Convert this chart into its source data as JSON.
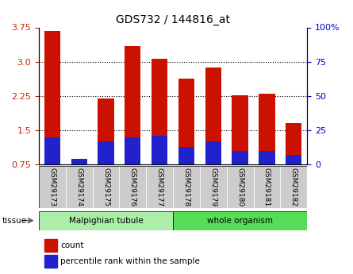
{
  "title": "GDS732 / 144816_at",
  "samples": [
    "GSM29173",
    "GSM29174",
    "GSM29175",
    "GSM29176",
    "GSM29177",
    "GSM29178",
    "GSM29179",
    "GSM29180",
    "GSM29181",
    "GSM29182"
  ],
  "count_values": [
    3.68,
    0.85,
    2.2,
    3.35,
    3.07,
    2.62,
    2.87,
    2.27,
    2.3,
    1.65
  ],
  "percentile_pct": [
    20,
    4,
    17,
    20,
    21,
    13,
    17,
    10,
    10,
    7
  ],
  "tissue_groups": [
    {
      "label": "Malpighian tubule",
      "start": 0,
      "end": 5,
      "color": "#aaeeaa"
    },
    {
      "label": "whole organism",
      "start": 5,
      "end": 10,
      "color": "#55dd55"
    }
  ],
  "ylim_left": [
    0.75,
    3.75
  ],
  "ylim_right": [
    0,
    100
  ],
  "yticks_left": [
    0.75,
    1.5,
    2.25,
    3.0,
    3.75
  ],
  "yticks_right": [
    0,
    25,
    50,
    75,
    100
  ],
  "ytick_labels_right": [
    "0",
    "25",
    "50",
    "75",
    "100%"
  ],
  "bar_color_red": "#cc1100",
  "bar_color_blue": "#2222cc",
  "bar_width": 0.6,
  "tick_label_color_left": "#cc2200",
  "tick_label_color_right": "#0000cc",
  "background_color": "#ffffff",
  "legend_count_label": "count",
  "legend_pct_label": "percentile rank within the sample",
  "tissue_label": "tissue",
  "grid_lines_at": [
    1.5,
    2.25,
    3.0
  ]
}
